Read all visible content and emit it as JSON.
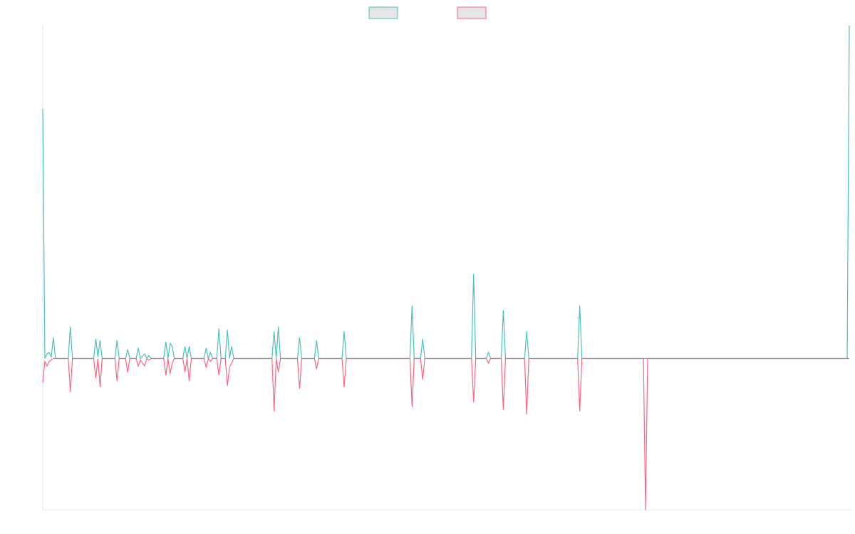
{
  "chart_data": {
    "type": "line",
    "title": "",
    "xlabel": "",
    "ylabel": "",
    "legend_position": "top-center",
    "grid": false,
    "x_count": 380,
    "ylim": [
      -1.0,
      2.2
    ],
    "series": [
      {
        "color": "#4bc0c0",
        "fill": "#e5e5e5",
        "points": [
          [
            0,
            1.65
          ],
          [
            1,
            0
          ],
          [
            2,
            0.03
          ],
          [
            3,
            0.04
          ],
          [
            4,
            0.01
          ],
          [
            5,
            0.14
          ],
          [
            6,
            0
          ],
          [
            12,
            0
          ],
          [
            13,
            0.21
          ],
          [
            14,
            0
          ],
          [
            24,
            0
          ],
          [
            25,
            0.13
          ],
          [
            26,
            0.01
          ],
          [
            27,
            0.12
          ],
          [
            28,
            0
          ],
          [
            34,
            0
          ],
          [
            35,
            0.12
          ],
          [
            36,
            0
          ],
          [
            39,
            0
          ],
          [
            40,
            0.06
          ],
          [
            41,
            0
          ],
          [
            44,
            0
          ],
          [
            45,
            0.07
          ],
          [
            46,
            0
          ],
          [
            48,
            0.03
          ],
          [
            49,
            0
          ],
          [
            50,
            0.02
          ],
          [
            51,
            0
          ],
          [
            57,
            0
          ],
          [
            58,
            0.11
          ],
          [
            59,
            0
          ],
          [
            60,
            0.1
          ],
          [
            61,
            0.08
          ],
          [
            62,
            0
          ],
          [
            66,
            0
          ],
          [
            67,
            0.08
          ],
          [
            68,
            0
          ],
          [
            69,
            0.08
          ],
          [
            70,
            0
          ],
          [
            76,
            0
          ],
          [
            77,
            0.07
          ],
          [
            78,
            0
          ],
          [
            79,
            0.04
          ],
          [
            80,
            0
          ],
          [
            82,
            0
          ],
          [
            83,
            0.2
          ],
          [
            84,
            0
          ],
          [
            86,
            0
          ],
          [
            87,
            0.19
          ],
          [
            88,
            0
          ],
          [
            89,
            0.08
          ],
          [
            90,
            0
          ],
          [
            108,
            0
          ],
          [
            109,
            0.18
          ],
          [
            110,
            0
          ],
          [
            111,
            0.21
          ],
          [
            112,
            0
          ],
          [
            120,
            0
          ],
          [
            121,
            0.14
          ],
          [
            122,
            0
          ],
          [
            128,
            0
          ],
          [
            129,
            0.12
          ],
          [
            130,
            0
          ],
          [
            141,
            0
          ],
          [
            142,
            0.18
          ],
          [
            143,
            0
          ],
          [
            173,
            0
          ],
          [
            174,
            0.35
          ],
          [
            175,
            0
          ],
          [
            178,
            0
          ],
          [
            179,
            0.13
          ],
          [
            180,
            0
          ],
          [
            202,
            0
          ],
          [
            203,
            0.56
          ],
          [
            204,
            0
          ],
          [
            209,
            0
          ],
          [
            210,
            0.04
          ],
          [
            211,
            0
          ],
          [
            216,
            0
          ],
          [
            217,
            0.32
          ],
          [
            218,
            0
          ],
          [
            227,
            0
          ],
          [
            228,
            0.18
          ],
          [
            229,
            0
          ],
          [
            252,
            0
          ],
          [
            253,
            0.35
          ],
          [
            254,
            0
          ],
          [
            379,
            0
          ],
          [
            380,
            2.2
          ]
        ]
      },
      {
        "color": "#ff6384",
        "fill": "#e5e5e5",
        "points": [
          [
            0,
            -0.16
          ],
          [
            1,
            -0.02
          ],
          [
            2,
            -0.05
          ],
          [
            3,
            -0.02
          ],
          [
            4,
            -0.01
          ],
          [
            5,
            0
          ],
          [
            12,
            0
          ],
          [
            13,
            -0.22
          ],
          [
            14,
            0
          ],
          [
            24,
            0
          ],
          [
            25,
            -0.13
          ],
          [
            26,
            0
          ],
          [
            27,
            -0.19
          ],
          [
            28,
            0
          ],
          [
            34,
            0
          ],
          [
            35,
            -0.15
          ],
          [
            36,
            0
          ],
          [
            39,
            0
          ],
          [
            40,
            -0.09
          ],
          [
            41,
            0
          ],
          [
            44,
            0
          ],
          [
            45,
            -0.05
          ],
          [
            46,
            -0.01
          ],
          [
            48,
            -0.05
          ],
          [
            49,
            0
          ],
          [
            50,
            -0.01
          ],
          [
            51,
            0
          ],
          [
            57,
            0
          ],
          [
            58,
            -0.11
          ],
          [
            59,
            0
          ],
          [
            60,
            -0.1
          ],
          [
            61,
            -0.03
          ],
          [
            62,
            0
          ],
          [
            66,
            0
          ],
          [
            67,
            -0.09
          ],
          [
            68,
            0
          ],
          [
            69,
            -0.15
          ],
          [
            70,
            0
          ],
          [
            76,
            0
          ],
          [
            77,
            -0.06
          ],
          [
            78,
            0
          ],
          [
            79,
            -0.02
          ],
          [
            80,
            0
          ],
          [
            82,
            0
          ],
          [
            83,
            -0.11
          ],
          [
            84,
            0
          ],
          [
            86,
            0
          ],
          [
            87,
            -0.18
          ],
          [
            88,
            -0.06
          ],
          [
            89,
            -0.03
          ],
          [
            90,
            0
          ],
          [
            108,
            0
          ],
          [
            109,
            -0.35
          ],
          [
            110,
            0
          ],
          [
            111,
            -0.09
          ],
          [
            112,
            0
          ],
          [
            120,
            0
          ],
          [
            121,
            -0.2
          ],
          [
            122,
            0
          ],
          [
            128,
            0
          ],
          [
            129,
            -0.07
          ],
          [
            130,
            0
          ],
          [
            141,
            0
          ],
          [
            142,
            -0.19
          ],
          [
            143,
            0
          ],
          [
            173,
            0
          ],
          [
            174,
            -0.32
          ],
          [
            175,
            0
          ],
          [
            178,
            0
          ],
          [
            179,
            -0.14
          ],
          [
            180,
            0
          ],
          [
            202,
            0
          ],
          [
            203,
            -0.29
          ],
          [
            204,
            0
          ],
          [
            209,
            0
          ],
          [
            210,
            -0.03
          ],
          [
            211,
            0
          ],
          [
            216,
            0
          ],
          [
            217,
            -0.34
          ],
          [
            218,
            0
          ],
          [
            227,
            0
          ],
          [
            228,
            -0.37
          ],
          [
            229,
            0
          ],
          [
            252,
            0
          ],
          [
            253,
            -0.35
          ],
          [
            254,
            0
          ],
          [
            283,
            0
          ],
          [
            284,
            -1.0
          ],
          [
            285,
            0
          ],
          [
            380,
            0
          ]
        ]
      }
    ]
  }
}
